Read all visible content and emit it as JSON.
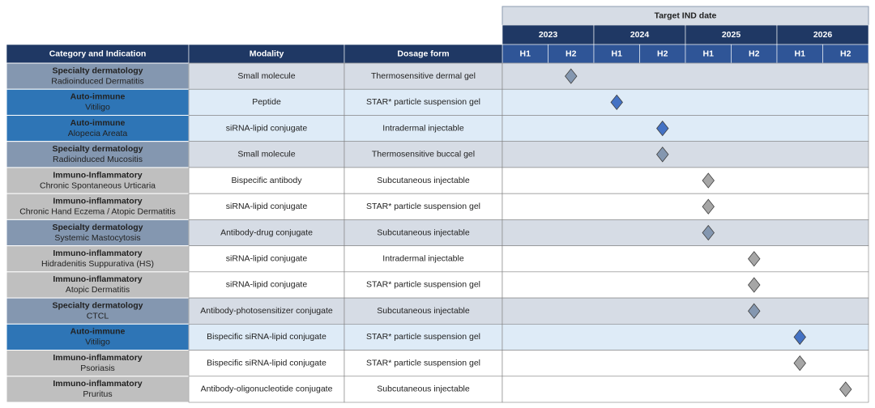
{
  "header": {
    "timeline_title": "Target IND date",
    "columns": [
      "Category and Indication",
      "Modality",
      "Dosage form"
    ],
    "years": [
      "2023",
      "2024",
      "2025",
      "2026"
    ],
    "halves": [
      "H1",
      "H2"
    ]
  },
  "table": {
    "rows": [
      {
        "category": "Specialty dermatology",
        "indication": "Radioinduced Dermatitis",
        "modality": "Small molecule",
        "dosage_form": "Thermosensitive dermal gel",
        "target": 1,
        "color": "#8497b0",
        "band": "#d6dce5",
        "marker": "#8497b0"
      },
      {
        "category": "Auto-immune",
        "indication": "Vitiligo",
        "modality": "Peptide",
        "dosage_form": "STAR* particle suspension gel",
        "target": 2,
        "color": "#2e75b6",
        "band": "#deebf7",
        "marker": "#4472c4"
      },
      {
        "category": "Auto-immune",
        "indication": "Alopecia Areata",
        "modality": "siRNA-lipid conjugate",
        "dosage_form": "Intradermal injectable",
        "target": 3,
        "color": "#2e75b6",
        "band": "#deebf7",
        "marker": "#4472c4"
      },
      {
        "category": "Specialty dermatology",
        "indication": "Radioinduced Mucositis",
        "modality": "Small molecule",
        "dosage_form": "Thermosensitive buccal gel",
        "target": 3,
        "color": "#8497b0",
        "band": "#d6dce5",
        "marker": "#8497b0"
      },
      {
        "category": "Immuno-Inflammatory",
        "indication": "Chronic Spontaneous Urticaria",
        "modality": "Bispecific antibody",
        "dosage_form": "Subcutaneous injectable",
        "target": 4,
        "color": "#bfbfbf",
        "band": "#ffffff",
        "marker": "#a6a6a6"
      },
      {
        "category": "Immuno-inflammatory",
        "indication": "Chronic Hand Eczema / Atopic Dermatitis",
        "modality": "siRNA-lipid conjugate",
        "dosage_form": "STAR* particle suspension gel",
        "target": 4,
        "color": "#bfbfbf",
        "band": "#ffffff",
        "marker": "#a6a6a6"
      },
      {
        "category": "Specialty dermatology",
        "indication": "Systemic Mastocytosis",
        "modality": "Antibody-drug conjugate",
        "dosage_form": "Subcutaneous injectable",
        "target": 4,
        "color": "#8497b0",
        "band": "#d6dce5",
        "marker": "#8497b0"
      },
      {
        "category": "Immuno-inflammatory",
        "indication": "Hidradenitis Suppurativa (HS)",
        "modality": "siRNA-lipid conjugate",
        "dosage_form": "Intradermal injectable",
        "target": 5,
        "color": "#bfbfbf",
        "band": "#ffffff",
        "marker": "#a6a6a6"
      },
      {
        "category": "Immuno-inflammatory",
        "indication": "Atopic Dermatitis",
        "modality": "siRNA-lipid conjugate",
        "dosage_form": "STAR* particle suspension gel",
        "target": 5,
        "color": "#bfbfbf",
        "band": "#ffffff",
        "marker": "#a6a6a6"
      },
      {
        "category": "Specialty dermatology",
        "indication": "CTCL",
        "modality": "Antibody-photosensitizer conjugate",
        "dosage_form": "Subcutaneous injectable",
        "target": 5,
        "color": "#8497b0",
        "band": "#d6dce5",
        "marker": "#8497b0"
      },
      {
        "category": "Auto-immune",
        "indication": "Vitiligo",
        "modality": "Bispecific siRNA-lipid conjugate",
        "dosage_form": "STAR* particle suspension gel",
        "target": 6,
        "color": "#2e75b6",
        "band": "#deebf7",
        "marker": "#4472c4"
      },
      {
        "category": "Immuno-inflammatory",
        "indication": "Psoriasis",
        "modality": "Bispecific siRNA-lipid conjugate",
        "dosage_form": "STAR* particle suspension gel",
        "target": 6,
        "color": "#bfbfbf",
        "band": "#ffffff",
        "marker": "#a6a6a6"
      },
      {
        "category": "Immuno-inflammatory",
        "indication": "Pruritus",
        "modality": "Antibody-oligonucleotide conjugate",
        "dosage_form": "Subcutaneous injectable",
        "target": 7,
        "color": "#bfbfbf",
        "band": "#ffffff",
        "marker": "#a6a6a6"
      }
    ]
  }
}
